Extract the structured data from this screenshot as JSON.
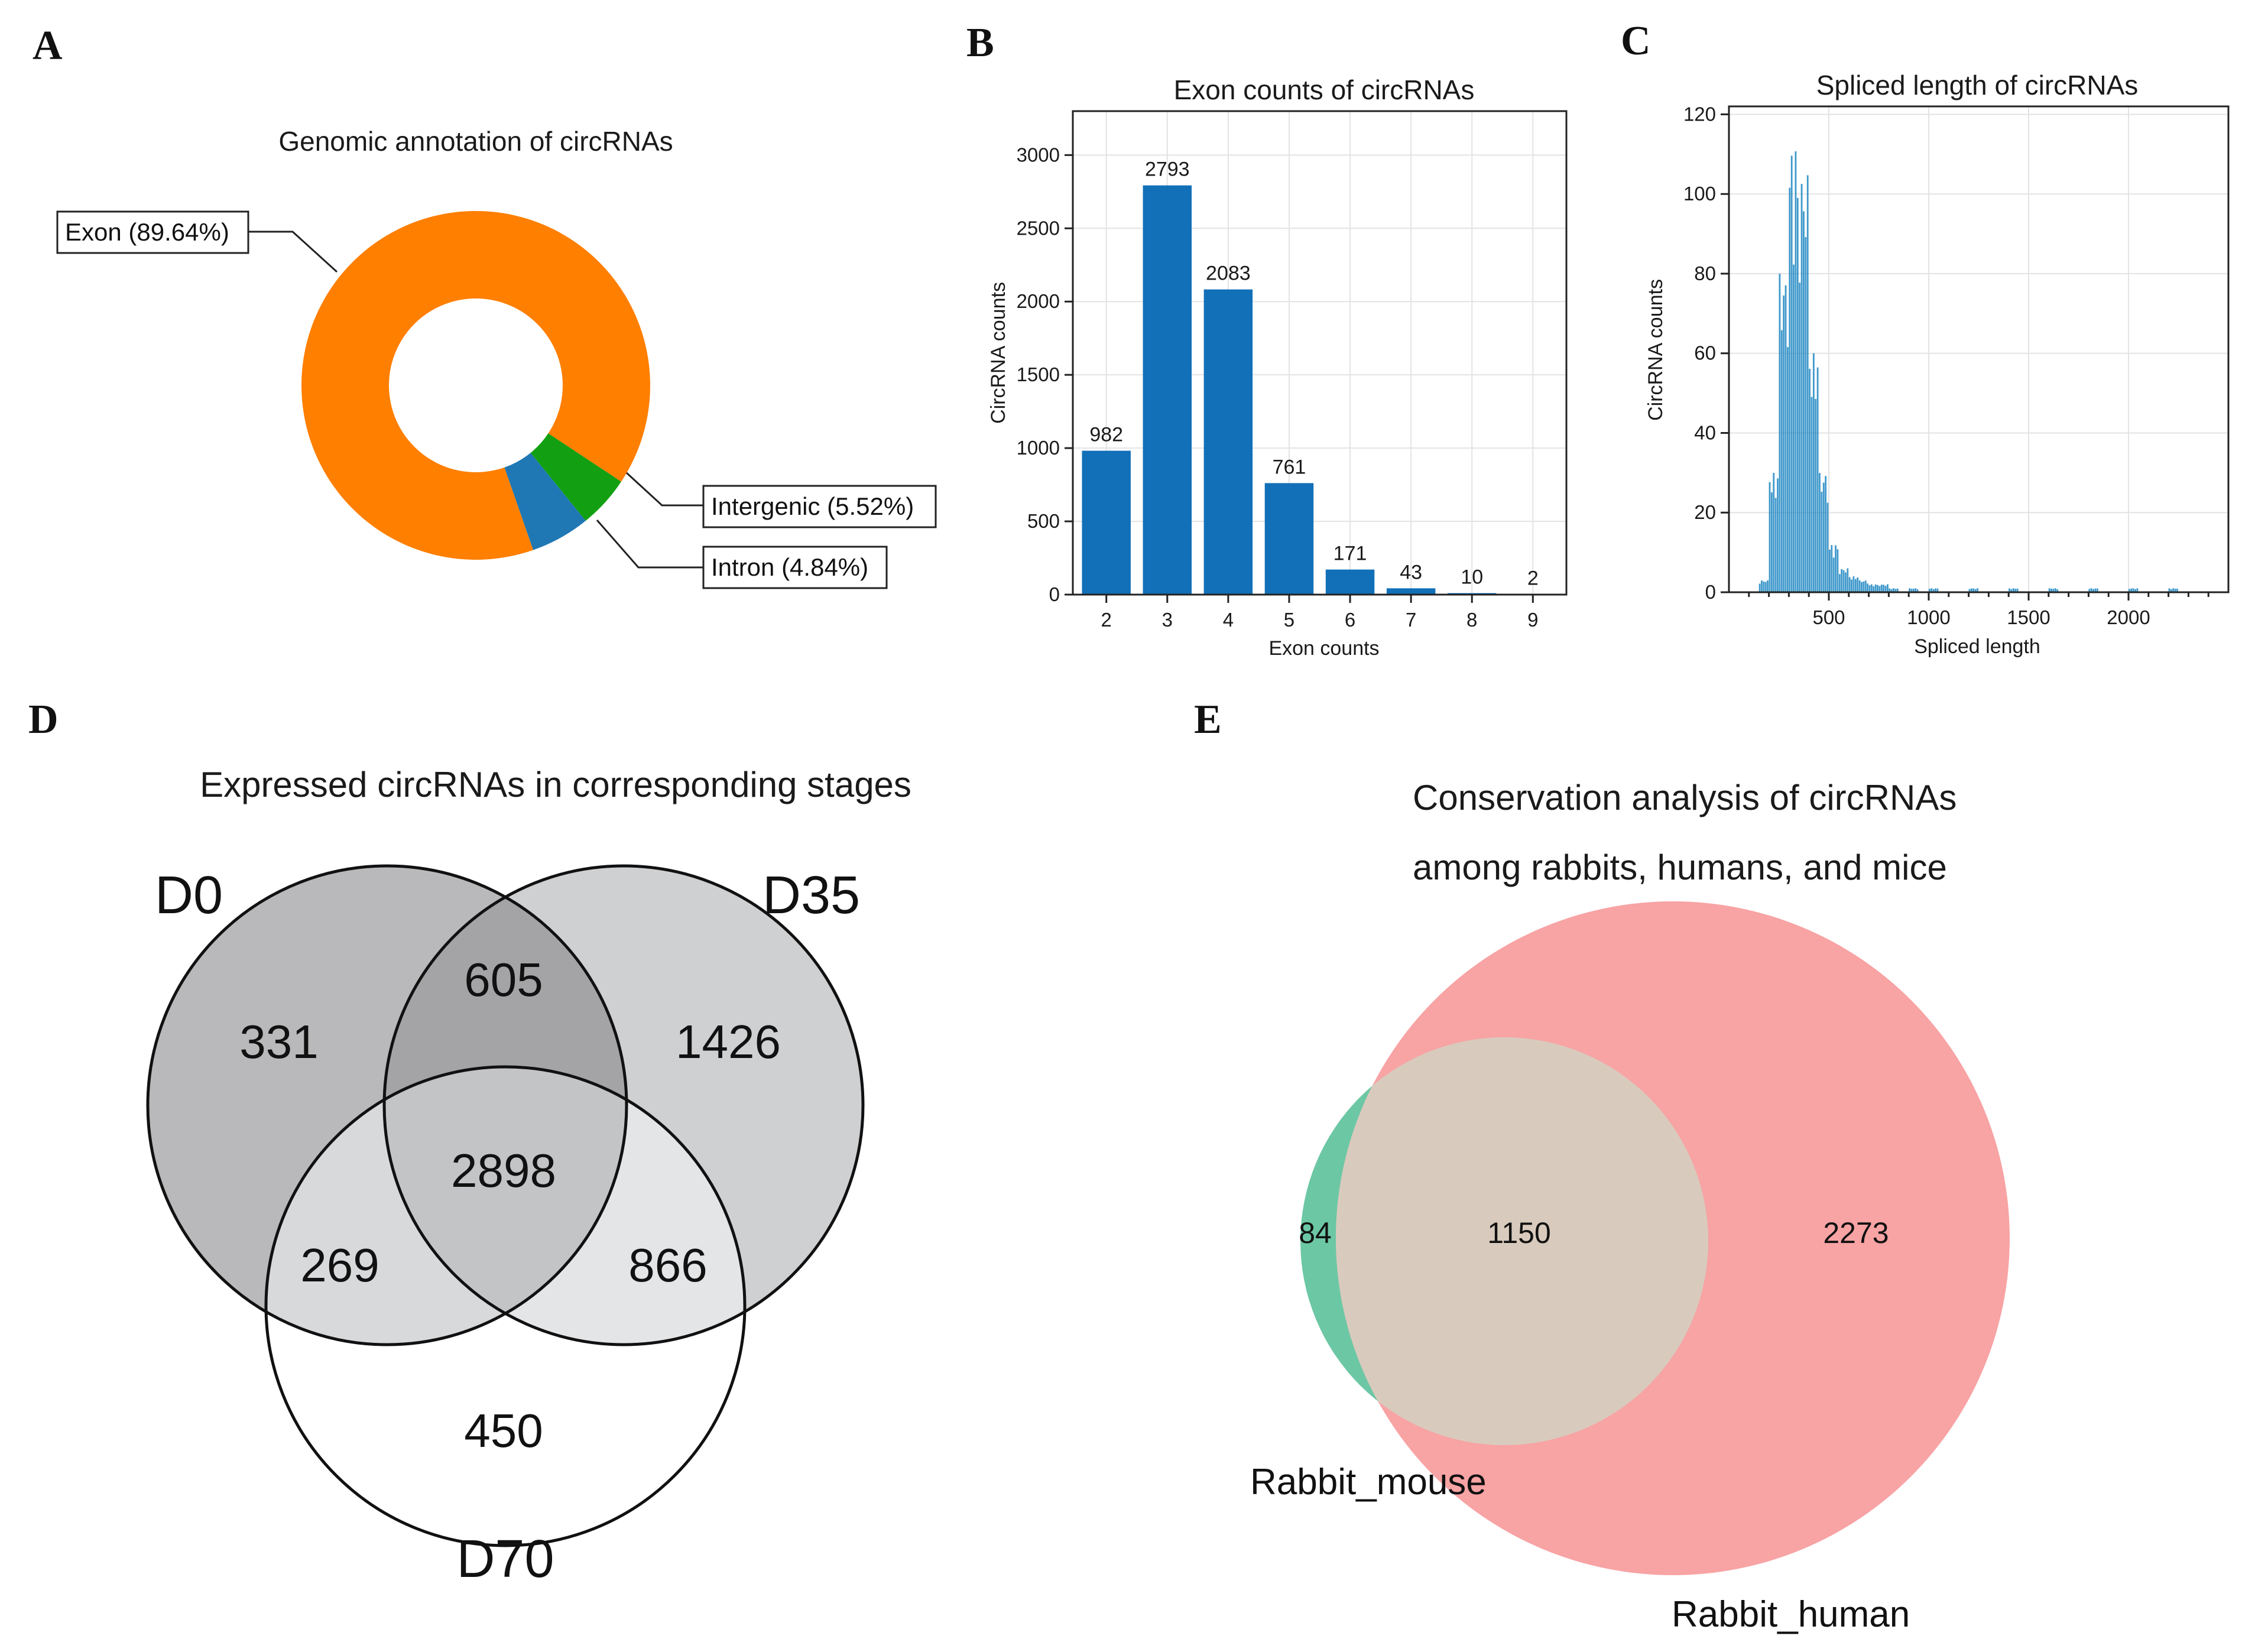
{
  "panel_labels": [
    "A",
    "B",
    "C",
    "D",
    "E"
  ],
  "colors": {
    "exon": "#ff7f00",
    "intergenic": "#1f78b4",
    "intron": "#12a012",
    "bar": "#1170b8",
    "venn_d0": "#b9b9bb",
    "venn_d35": "#cfd0d2",
    "venn_d0_d35": "#a4a4a6",
    "venn_d0_d70": "#d8d9db",
    "venn_d35_d70": "#e4e5e7",
    "venn_all": "#c3c4c6",
    "rabbit_mouse": "#6cc7a5",
    "rabbit_human": "#f8a3a4",
    "overlap": "#d8cbbd"
  },
  "chart_data": [
    {
      "id": "A",
      "type": "pie",
      "title": "Genomic annotation of circRNAs",
      "slices": [
        {
          "name": "Exon",
          "value": 89.64,
          "label": "Exon (89.64%)",
          "color": "#ff7f00"
        },
        {
          "name": "Intergenic",
          "value": 5.52,
          "label": "Intergenic (5.52%)",
          "color": "#1f78b4"
        },
        {
          "name": "Intron",
          "value": 4.84,
          "label": "Intron (4.84%)",
          "color": "#12a012"
        }
      ]
    },
    {
      "id": "B",
      "type": "bar",
      "title": "Exon counts of circRNAs",
      "xlabel": "Exon counts",
      "ylabel": "CircRNA counts",
      "categories": [
        "2",
        "3",
        "4",
        "5",
        "6",
        "7",
        "8",
        "9"
      ],
      "values": [
        982,
        2793,
        2083,
        761,
        171,
        43,
        10,
        2
      ],
      "value_labels": [
        "982",
        "2793",
        "2083",
        "761",
        "171",
        "43",
        "10",
        "2"
      ],
      "ylim": [
        0,
        3300
      ],
      "yticks": [
        0,
        500,
        1000,
        1500,
        2000,
        2500,
        3000
      ],
      "ytick_labels": [
        "0",
        "500",
        "1000",
        "1500",
        "2000",
        "2500",
        "3000"
      ],
      "grid": true
    },
    {
      "id": "C",
      "type": "bar",
      "title": "Spliced length of circRNAs",
      "xlabel": "Spliced length",
      "ylabel": "CircRNA counts",
      "xlim": [
        0,
        2500
      ],
      "ylim": [
        0,
        122
      ],
      "xticks": [
        500,
        1000,
        1500,
        2000
      ],
      "xtick_labels": [
        "500",
        "1000",
        "1500",
        "2000"
      ],
      "yticks": [
        0,
        20,
        40,
        60,
        80,
        100,
        120
      ],
      "ytick_labels": [
        "0",
        "20",
        "40",
        "60",
        "80",
        "100",
        "120"
      ],
      "histogram_bins": {
        "bin_width": 50,
        "bin_starts": [
          150,
          200,
          250,
          300,
          350,
          400,
          450,
          500,
          550,
          600,
          650,
          700,
          750,
          800,
          900,
          1000,
          1200,
          1400,
          1600,
          1800,
          2000,
          2200
        ],
        "approx_peak_count": [
          3,
          30,
          80,
          112,
          105,
          60,
          30,
          12,
          6,
          4,
          3,
          2,
          2,
          1,
          1,
          1,
          1,
          1,
          1,
          1,
          1,
          1
        ]
      },
      "grid": true
    },
    {
      "id": "D",
      "type": "table",
      "chart_kind": "venn3",
      "title": "Expressed circRNAs in corresponding stages",
      "sets": [
        "D0",
        "D35",
        "D70"
      ],
      "regions": {
        "D0_only": "331",
        "D35_only": "1426",
        "D70_only": "450",
        "D0_D35": "605",
        "D0_D70": "269",
        "D35_D70": "866",
        "D0_D35_D70": "2898"
      }
    },
    {
      "id": "E",
      "type": "table",
      "chart_kind": "venn2",
      "title_line1": "Conservation analysis of circRNAs",
      "title_line2": "among rabbits, humans, and mice",
      "sets": [
        "Rabbit_mouse",
        "Rabbit_human"
      ],
      "regions": {
        "Rabbit_mouse_only": "84",
        "both": "1150",
        "Rabbit_human_only": "2273"
      }
    }
  ]
}
